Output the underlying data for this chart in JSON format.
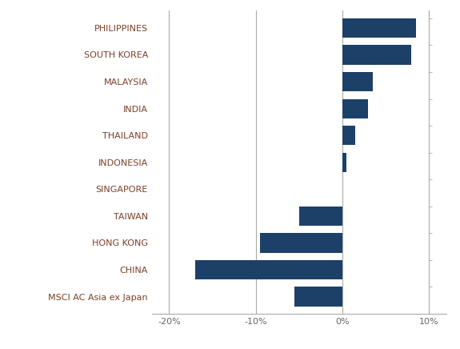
{
  "categories": [
    "PHILIPPINES",
    "SOUTH KOREA",
    "MALAYSIA",
    "INDIA",
    "THAILAND",
    "INDONESIA",
    "SINGAPORE",
    "TAIWAN",
    "HONG KONG",
    "CHINA",
    "MSCI AC Asia ex Japan"
  ],
  "values": [
    8.5,
    8.0,
    3.5,
    3.0,
    1.5,
    0.5,
    0.0,
    -5.0,
    -9.5,
    -17.0,
    -5.5
  ],
  "bar_color": "#1d4068",
  "label_color": "#7b3f2a",
  "background_color": "#ffffff",
  "grid_color": "#aaaaaa",
  "xlim": [
    -22,
    12
  ],
  "xticks": [
    -20,
    -10,
    0,
    10
  ],
  "xticklabels": [
    "-20%",
    "-10%",
    "0%",
    "10%"
  ],
  "bar_height": 0.72,
  "figsize": [
    5.75,
    4.36
  ],
  "dpi": 100,
  "label_fontsize": 8.0,
  "tick_fontsize": 8.0
}
